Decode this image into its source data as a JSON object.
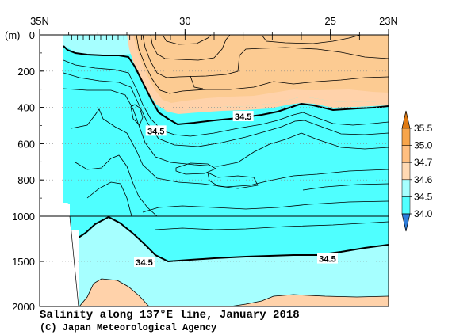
{
  "chart_data": {
    "type": "contour-section",
    "title": "Salinity along 137°E line, January 2018",
    "credit": "(C) Japan Meteorological Agency",
    "depth_unit": "(m)",
    "x_axis": {
      "ticks": [
        {
          "lat": 35,
          "label": "35N"
        },
        {
          "lat": 30,
          "label": "30"
        },
        {
          "lat": 25,
          "label": "25"
        },
        {
          "lat": 23,
          "label": "23N"
        }
      ],
      "range": [
        35,
        23
      ],
      "station_lats": [
        33.9,
        33.7,
        33.5,
        33.3,
        33.1,
        32.9,
        32.7,
        32.5,
        32.3,
        32.1,
        31.9,
        31.5,
        31,
        30.5,
        30,
        29,
        28,
        27,
        26,
        25,
        24
      ]
    },
    "y_axis": {
      "upper_ticks": [
        0,
        200,
        400,
        600,
        800,
        1000
      ],
      "lower_ticks": [
        1500,
        2000
      ],
      "upper_range": [
        0,
        1000
      ],
      "lower_range": [
        1000,
        2000
      ]
    },
    "colorbar": {
      "levels": [
        "34.0",
        "34.5",
        "34.6",
        "34.7",
        "35.0",
        "35.5"
      ],
      "colors": [
        "#52FFFF",
        "#A6FFFF",
        "#FFD9B3",
        "#FFBF80",
        "#F7A54B",
        "#E88A1F"
      ],
      "extend_low": "#2E7DDB",
      "extend_high": "#E07A12"
    },
    "contour_labels": [
      {
        "value": "34.5",
        "lat": 28,
        "depth": 450
      },
      {
        "value": "34.5",
        "lat": 31,
        "depth": 530
      },
      {
        "value": "34.5",
        "lat": 31.4,
        "depth": 1510
      },
      {
        "value": "34.5",
        "lat": 25.1,
        "depth": 1470
      }
    ],
    "fill_colors": {
      "cyan": "#4FFFFF",
      "light_cyan": "#A6FFFF",
      "peach": "#FFD2AA",
      "tan": "#FCCB92"
    }
  }
}
